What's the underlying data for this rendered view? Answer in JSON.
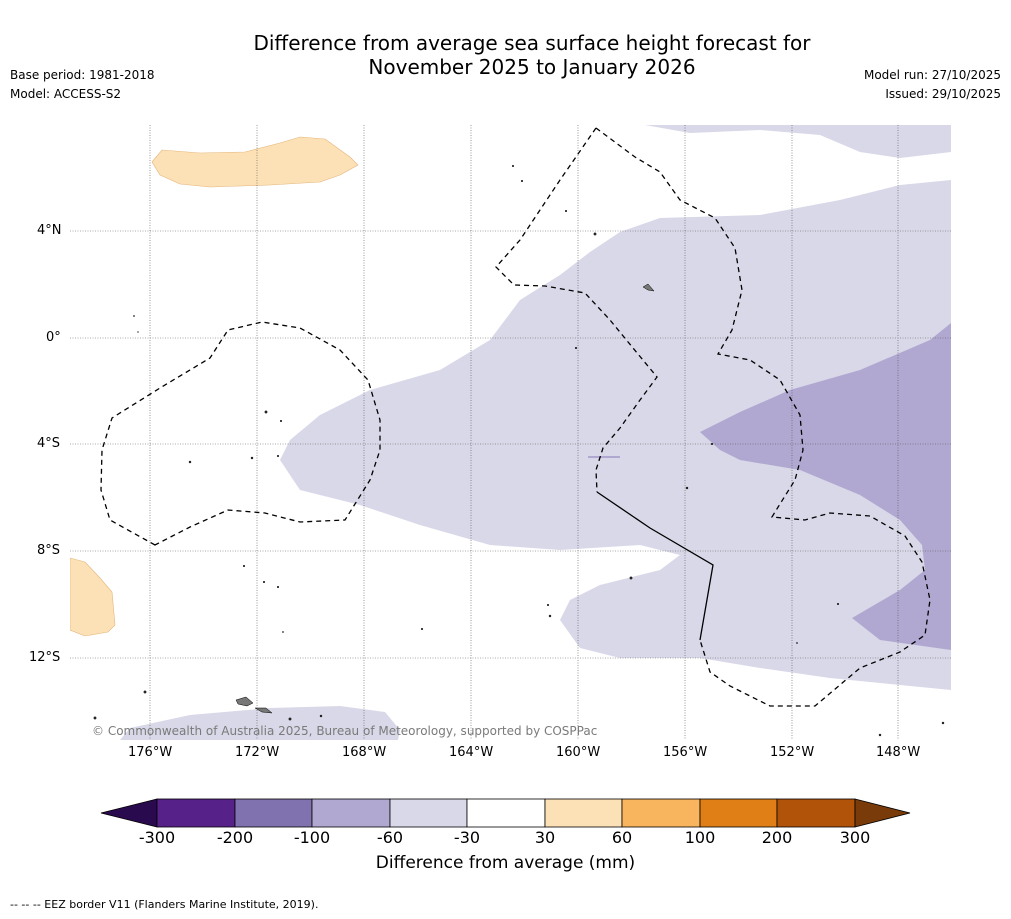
{
  "title_line1": "Difference from average sea surface height forecast for",
  "title_line2": "November 2025 to January 2026",
  "base_period": "Base period: 1981-2018",
  "model": "Model: ACCESS-S2",
  "model_run": "Model run: 27/10/2025",
  "issued": "Issued: 29/10/2025",
  "copyright": "© Commonwealth of Australia 2025, Bureau of Meteorology, supported by COSPPac",
  "lat_labels": [
    "4°N",
    "0°",
    "4°S",
    "8°S",
    "12°S"
  ],
  "lon_labels": [
    "176°W",
    "172°W",
    "168°W",
    "164°W",
    "160°W",
    "156°W",
    "152°W",
    "148°W"
  ],
  "colorbar": {
    "title": "Difference from average (mm)",
    "ticks": [
      "-300",
      "-200",
      "-100",
      "-60",
      "-30",
      "30",
      "60",
      "100",
      "200",
      "300"
    ],
    "colors": [
      "#2a0a4e",
      "#56228a",
      "#8072ae",
      "#b0a8d0",
      "#d8d8e8",
      "#ffffff",
      "#fde1b6",
      "#f8b55e",
      "#e07f15",
      "#b1540a",
      "#7a3b0a"
    ]
  },
  "footnote": "--  --  -- EEZ border V11 (Flanders Marine Institute, 2019)."
}
